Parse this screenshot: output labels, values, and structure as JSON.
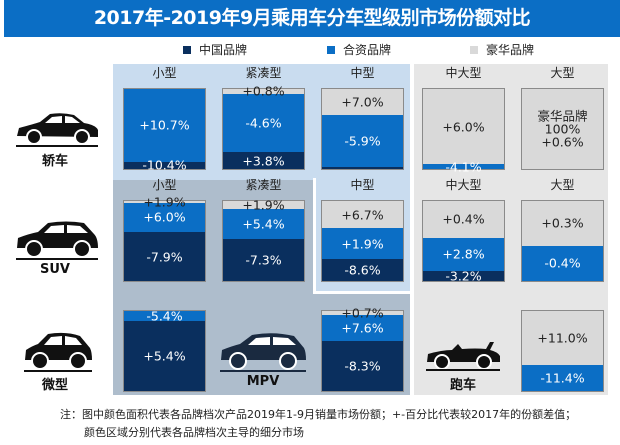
{
  "title": "2017年-2019年9月乘用车分车型级别市场份额对比",
  "colors": {
    "chinese": "#0a2f5e",
    "joint": "#0b6ec5",
    "luxury": "#d9d9d9",
    "title_bg": "#0b6ec5",
    "region_blue": "#c9dcef",
    "region_slate": "#aebdcc",
    "region_gray": "#e6e6e6"
  },
  "legend": [
    {
      "key": "chinese",
      "label": "中国品牌"
    },
    {
      "key": "joint",
      "label": "合资品牌"
    },
    {
      "key": "luxury",
      "label": "豪华品牌"
    }
  ],
  "row_labels": [
    "轿车",
    "SUV",
    "微型"
  ],
  "extra_labels": {
    "mpv": "MPV",
    "sports": "跑车"
  },
  "note": [
    "注：图中颜色面积代表各品牌档次产品2019年1-9月销量市场份额；+-百分比代表较2017年的份额差值；",
    "颜色区域分别代表各品牌档次主导的细分市场"
  ],
  "chart_data": {
    "type": "stacked-area-boxes",
    "unit": "market share 2019 Jan-Sep (%), label = change vs 2017",
    "cells": [
      {
        "row": "轿车",
        "class": "小型",
        "segments": [
          {
            "brand": "joint",
            "share": 91,
            "label": "+10.7%"
          },
          {
            "brand": "chinese",
            "share": 9,
            "label": "-10.4%"
          }
        ]
      },
      {
        "row": "轿车",
        "class": "紧凑型",
        "segments": [
          {
            "brand": "luxury",
            "share": 6,
            "label": "+0.8%"
          },
          {
            "brand": "joint",
            "share": 73,
            "label": "-4.6%"
          },
          {
            "brand": "chinese",
            "share": 21,
            "label": "+3.8%"
          }
        ]
      },
      {
        "row": "轿车",
        "class": "中型",
        "segments": [
          {
            "brand": "luxury",
            "share": 32,
            "label": "+7.0%"
          },
          {
            "brand": "joint",
            "share": 66,
            "label": "-5.9%"
          },
          {
            "brand": "chinese",
            "share": 2,
            "label": ""
          }
        ]
      },
      {
        "row": "轿车",
        "class": "中大型",
        "segments": [
          {
            "brand": "luxury",
            "share": 94,
            "label": "+6.0%"
          },
          {
            "brand": "joint",
            "share": 6,
            "label": "-4.1%"
          }
        ]
      },
      {
        "row": "轿车",
        "class": "大型",
        "segments": [
          {
            "brand": "luxury",
            "share": 100,
            "label": "豪华品牌\n100%\n+0.6%"
          }
        ]
      },
      {
        "row": "SUV",
        "class": "小型",
        "segments": [
          {
            "brand": "luxury",
            "share": 2,
            "label": "+1.9%"
          },
          {
            "brand": "joint",
            "share": 37,
            "label": "+6.0%"
          },
          {
            "brand": "chinese",
            "share": 61,
            "label": "-7.9%"
          }
        ]
      },
      {
        "row": "SUV",
        "class": "紧凑型",
        "segments": [
          {
            "brand": "luxury",
            "share": 10,
            "label": "+1.9%"
          },
          {
            "brand": "joint",
            "share": 37,
            "label": "+5.4%"
          },
          {
            "brand": "chinese",
            "share": 53,
            "label": "-7.3%"
          }
        ]
      },
      {
        "row": "SUV",
        "class": "中型",
        "segments": [
          {
            "brand": "luxury",
            "share": 34,
            "label": "+6.7%"
          },
          {
            "brand": "joint",
            "share": 39,
            "label": "+1.9%"
          },
          {
            "brand": "chinese",
            "share": 27,
            "label": "-8.6%"
          }
        ]
      },
      {
        "row": "SUV",
        "class": "中大型",
        "segments": [
          {
            "brand": "luxury",
            "share": 46,
            "label": "+0.4%"
          },
          {
            "brand": "joint",
            "share": 41,
            "label": "+2.8%"
          },
          {
            "brand": "chinese",
            "share": 13,
            "label": "-3.2%"
          }
        ]
      },
      {
        "row": "SUV",
        "class": "大型",
        "segments": [
          {
            "brand": "luxury",
            "share": 56,
            "label": "+0.3%"
          },
          {
            "brand": "joint",
            "share": 44,
            "label": "-0.4%"
          }
        ]
      },
      {
        "row": "微型",
        "class": "",
        "segments": [
          {
            "brand": "joint",
            "share": 12,
            "label": "-5.4%"
          },
          {
            "brand": "chinese",
            "share": 88,
            "label": "+5.4%"
          }
        ]
      },
      {
        "row": "MPV",
        "class": "",
        "segments": [
          {
            "brand": "luxury",
            "share": 5,
            "label": "+0.7%"
          },
          {
            "brand": "joint",
            "share": 32,
            "label": "+7.6%"
          },
          {
            "brand": "chinese",
            "share": 63,
            "label": "-8.3%"
          }
        ]
      },
      {
        "row": "跑车",
        "class": "",
        "segments": [
          {
            "brand": "luxury",
            "share": 67,
            "label": "+11.0%"
          },
          {
            "brand": "joint",
            "share": 33,
            "label": "-11.4%"
          }
        ]
      }
    ]
  }
}
